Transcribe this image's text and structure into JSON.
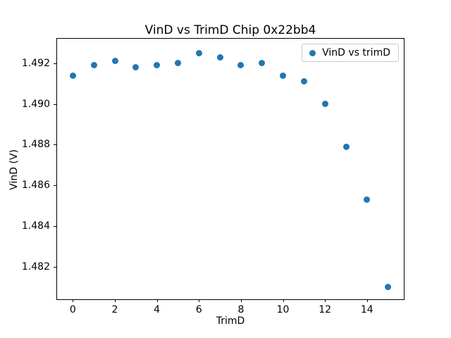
{
  "figure": {
    "background": "#ffffff",
    "accent_color": "#1f77b4"
  },
  "chart_data": {
    "type": "scatter",
    "title": "VinD vs TrimD Chip 0x22bb4",
    "xlabel": "TrimD",
    "ylabel": "VinD (V)",
    "grid": false,
    "legend_position": "upper right",
    "marker_color": "#1f77b4",
    "x": [
      0,
      1,
      2,
      3,
      4,
      5,
      6,
      7,
      8,
      9,
      10,
      11,
      12,
      13,
      14,
      15
    ],
    "series": [
      {
        "name": "VinD vs trimD",
        "y": [
          1.4914,
          1.4919,
          1.4921,
          1.4918,
          1.4919,
          1.492,
          1.4925,
          1.4923,
          1.4919,
          1.492,
          1.4914,
          1.4911,
          1.49,
          1.4879,
          1.4853,
          1.481
        ]
      }
    ],
    "xlim": [
      -0.75,
      15.75
    ],
    "ylim": [
      1.4804,
      1.4932
    ],
    "xticks": [
      0,
      2,
      4,
      6,
      8,
      10,
      12,
      14
    ],
    "xtick_labels": [
      "0",
      "2",
      "4",
      "6",
      "8",
      "10",
      "12",
      "14"
    ],
    "yticks": [
      1.482,
      1.484,
      1.486,
      1.488,
      1.49,
      1.492
    ],
    "ytick_labels": [
      "1.482",
      "1.484",
      "1.486",
      "1.488",
      "1.490",
      "1.492"
    ]
  }
}
